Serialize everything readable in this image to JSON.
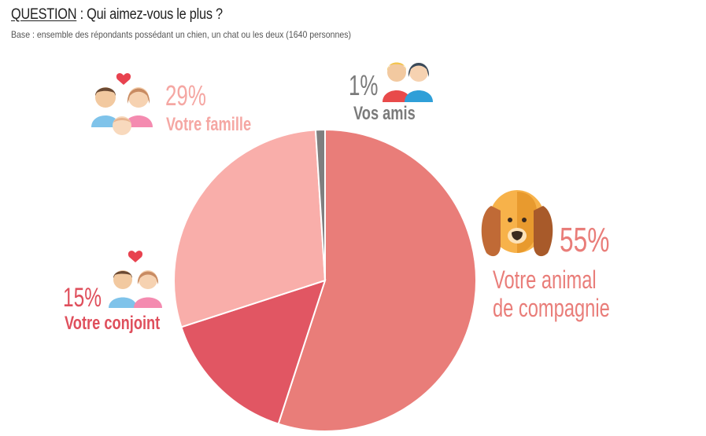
{
  "header": {
    "question_label": "QUESTION",
    "question_text": " : Qui aimez-vous le plus ?",
    "base": "Base : ensemble des répondants possédant un chien, un chat ou les deux (1640 personnes)"
  },
  "colors": {
    "animal": "#e97d79",
    "conjoint": "#e15663",
    "famille": "#f9aeaa",
    "amis": "#7f7f7f",
    "label_animal": "#e97d79",
    "label_conjoint": "#df4f5c",
    "label_famille": "#f5a7a3",
    "label_amis": "#7a7a7a"
  },
  "icons": {
    "animal": "dog-face-icon",
    "conjoint": "couple-heart-icon",
    "famille": "family-icon",
    "amis": "friends-icon"
  },
  "chart_data": {
    "type": "pie",
    "title": "Qui aimez-vous le plus ?",
    "slices": [
      {
        "label": "Votre animal de compagnie",
        "value": 55,
        "display": "55%"
      },
      {
        "label": "Votre conjoint",
        "value": 15,
        "display": "15%"
      },
      {
        "label": "Votre famille",
        "value": 29,
        "display": "29%"
      },
      {
        "label": "Vos amis",
        "value": 1,
        "display": "1%"
      }
    ]
  },
  "labels": {
    "animal_pct": "55%",
    "animal_line1": "Votre animal",
    "animal_line2": "de compagnie",
    "conjoint_pct": "15%",
    "conjoint_name": "Votre conjoint",
    "famille_pct": "29%",
    "famille_name": "Votre famille",
    "amis_pct": "1%",
    "amis_name": "Vos amis"
  }
}
